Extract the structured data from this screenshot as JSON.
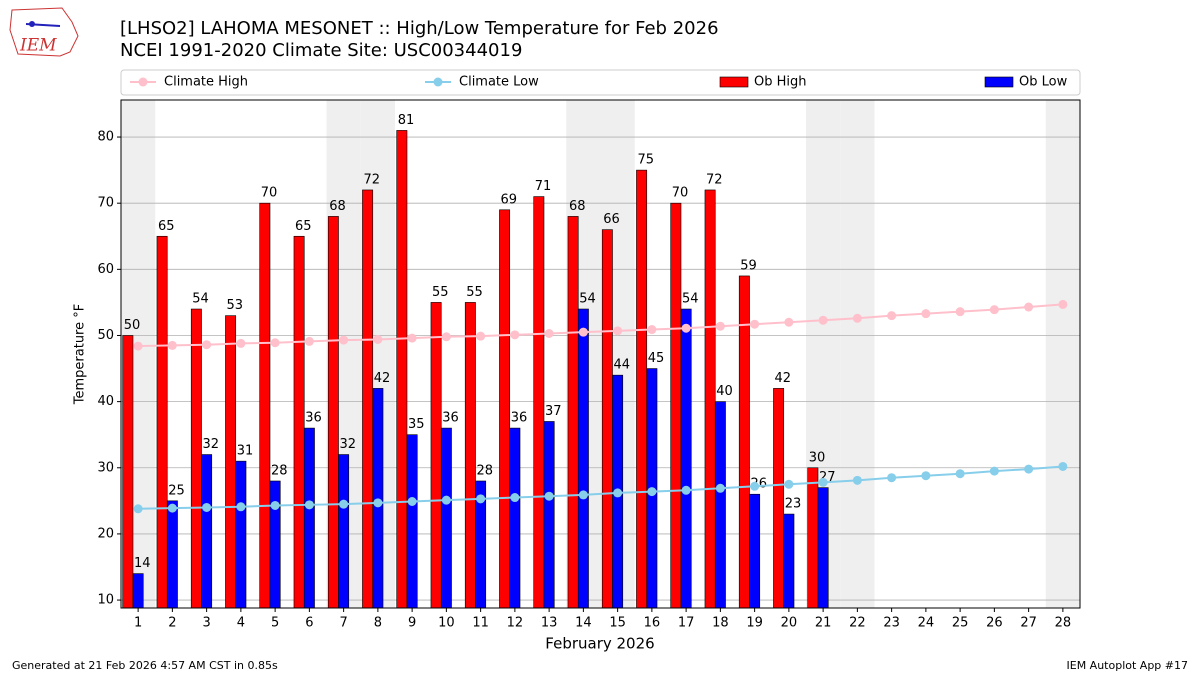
{
  "chart_data": {
    "type": "bar",
    "title": "[LHSO2] LAHOMA MESONET :: High/Low Temperature for Feb 2026",
    "subtitle": "NCEI 1991-2020 Climate Site: USC00344019",
    "logo_text": "IEM",
    "x_label": "February 2026",
    "y_label": "Temperature °F",
    "footer_left": "Generated at 21 Feb 2026 4:57 AM CST in 0.85s",
    "footer_right": "IEM Autoplot App #17",
    "categories": [
      1,
      2,
      3,
      4,
      5,
      6,
      7,
      8,
      9,
      10,
      11,
      12,
      13,
      14,
      15,
      16,
      17,
      18,
      19,
      20,
      21,
      22,
      23,
      24,
      25,
      26,
      27,
      28
    ],
    "xlim": [
      0.5,
      28.5
    ],
    "ylim": [
      8.8,
      85.6
    ],
    "yticks": [
      10,
      20,
      30,
      40,
      50,
      60,
      70,
      80
    ],
    "grid": true,
    "weekend_days": [
      1,
      7,
      8,
      14,
      15,
      21,
      22,
      28
    ],
    "weekend_color": "#efefef",
    "legend": "top",
    "series": [
      {
        "name": "Climate High",
        "type": "line",
        "color": "#ffc0cb",
        "values": [
          48.4,
          48.5,
          48.6,
          48.8,
          48.9,
          49.1,
          49.3,
          49.4,
          49.6,
          49.8,
          49.9,
          50.1,
          50.3,
          50.5,
          50.7,
          50.9,
          51.1,
          51.4,
          51.7,
          52.0,
          52.3,
          52.6,
          53.0,
          53.3,
          53.6,
          53.9,
          54.3,
          54.7
        ]
      },
      {
        "name": "Climate Low",
        "type": "line",
        "color": "#87ceeb",
        "values": [
          23.8,
          23.9,
          24.0,
          24.1,
          24.3,
          24.4,
          24.5,
          24.7,
          24.9,
          25.1,
          25.3,
          25.5,
          25.7,
          25.9,
          26.2,
          26.4,
          26.6,
          26.9,
          27.2,
          27.5,
          27.8,
          28.1,
          28.5,
          28.8,
          29.1,
          29.5,
          29.8,
          30.2
        ]
      },
      {
        "name": "Ob High",
        "type": "bar",
        "color": "#ff0000",
        "values": [
          50,
          65,
          54,
          53,
          70,
          65,
          68,
          72,
          81,
          55,
          55,
          69,
          71,
          68,
          66,
          75,
          70,
          72,
          59,
          42,
          30,
          null,
          null,
          null,
          null,
          null,
          null,
          null
        ]
      },
      {
        "name": "Ob Low",
        "type": "bar",
        "color": "#0000ff",
        "values": [
          14,
          25,
          32,
          31,
          28,
          36,
          32,
          42,
          35,
          36,
          28,
          36,
          37,
          54,
          44,
          45,
          54,
          40,
          26,
          23,
          27,
          null,
          null,
          null,
          null,
          null,
          null,
          null
        ]
      }
    ]
  }
}
